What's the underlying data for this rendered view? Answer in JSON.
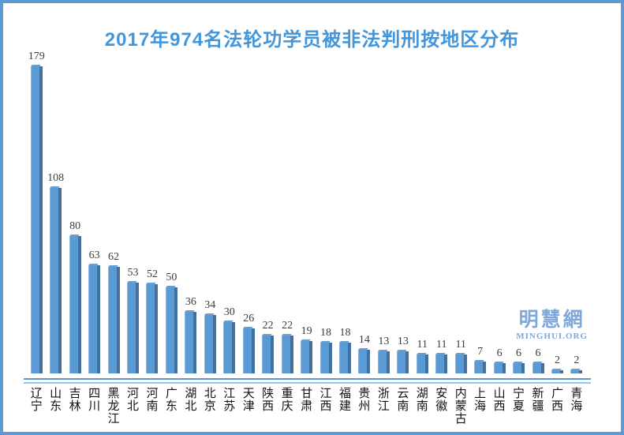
{
  "title_color": "#4296db",
  "frame": {
    "border_color": "#5b9bd5",
    "background": "#ffffff"
  },
  "watermark": {
    "cjk": "明慧網",
    "latin": "MINGHUI.ORG",
    "color": "#7fa8d9"
  },
  "chart_data": {
    "type": "bar",
    "title": "2017年974名法轮功学员被非法判刑按地区分布",
    "categories": [
      "辽宁",
      "山东",
      "吉林",
      "四川",
      "黑龙江",
      "河北",
      "河南",
      "广东",
      "湖北",
      "北京",
      "江苏",
      "天津",
      "陕西",
      "重庆",
      "甘肃",
      "江西",
      "福建",
      "贵州",
      "浙江",
      "云南",
      "湖南",
      "安徽",
      "内蒙古",
      "上海",
      "山西",
      "宁夏",
      "新疆",
      "广西",
      "青海"
    ],
    "values": [
      179,
      108,
      80,
      63,
      62,
      53,
      52,
      50,
      36,
      34,
      30,
      26,
      22,
      22,
      19,
      18,
      18,
      14,
      13,
      13,
      11,
      11,
      11,
      7,
      6,
      6,
      6,
      2,
      2
    ],
    "total": 974,
    "xlabel": "",
    "ylabel": "",
    "ylim": [
      0,
      185
    ],
    "grid": false,
    "legend": false,
    "value_labels_shown": true,
    "bar_color": "#5b9bd5",
    "bar_side_color": "#41719c",
    "value_label_color": "#3c3c3c",
    "axis_line_color": "#5b9bd5",
    "axis_floor_color": "#9dc3e6"
  }
}
